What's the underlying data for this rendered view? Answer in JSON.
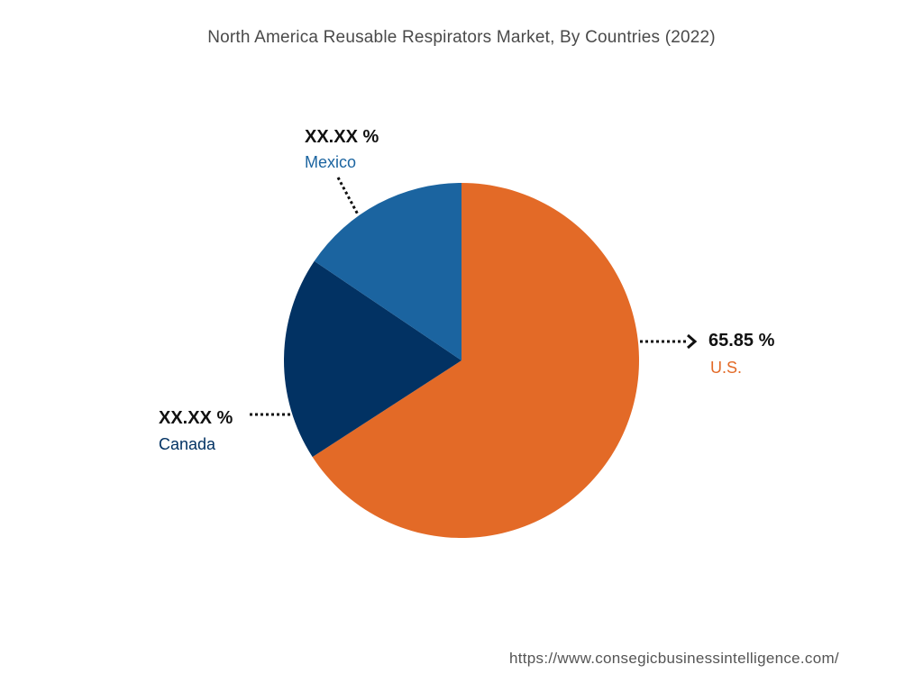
{
  "chart_data": {
    "type": "pie",
    "title": "North America Reusable Respirators Market, By Countries  (2022)",
    "categories": [
      "U.S.",
      "Canada",
      "Mexico"
    ],
    "values": [
      65.85,
      18.6,
      15.55
    ],
    "value_labels": [
      "65.85 %",
      "XX.XX %",
      "XX.XX %"
    ],
    "colors": [
      "#E36A27",
      "#023263",
      "#1B64A0"
    ],
    "start_angle_deg": 0,
    "direction": "clockwise"
  },
  "footer": {
    "source_url": "https://www.consegicbusinessintelligence.com/"
  }
}
